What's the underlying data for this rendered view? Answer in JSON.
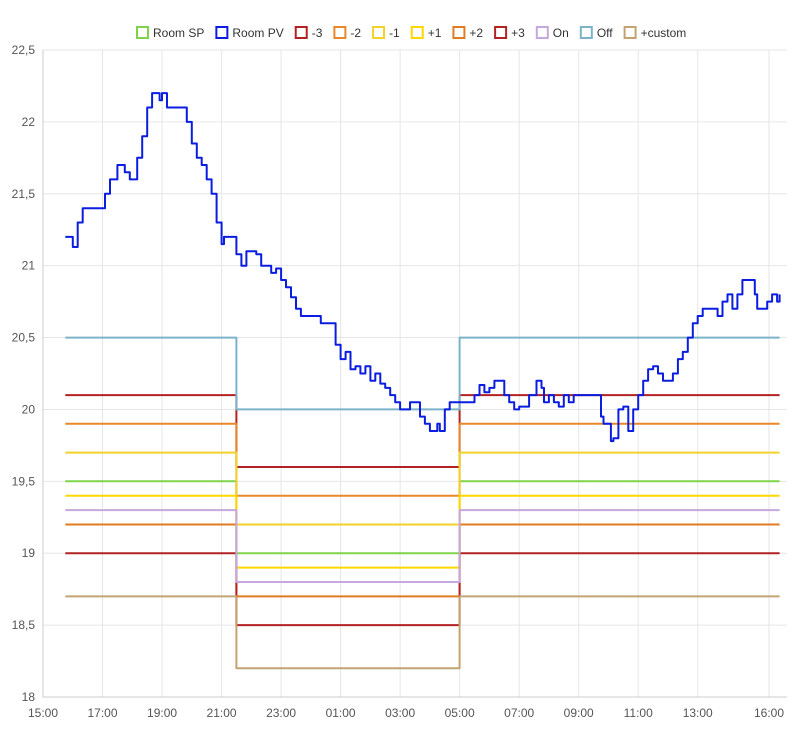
{
  "chart_data": {
    "type": "line",
    "title": "",
    "xlabel": "",
    "ylabel": "",
    "ylim": [
      18,
      22.5
    ],
    "y_ticks": [
      {
        "value": 18,
        "label": "18"
      },
      {
        "value": 18.5,
        "label": "18,5"
      },
      {
        "value": 19,
        "label": "19"
      },
      {
        "value": 19.5,
        "label": "19,5"
      },
      {
        "value": 20,
        "label": "20"
      },
      {
        "value": 20.5,
        "label": "20,5"
      },
      {
        "value": 21,
        "label": "21"
      },
      {
        "value": 21.5,
        "label": "21,5"
      },
      {
        "value": 22,
        "label": "22"
      },
      {
        "value": 22.5,
        "label": "22,5"
      }
    ],
    "xlim": [
      "15:00",
      "16:00 (next day)"
    ],
    "x_ticks": [
      "15:00",
      "17:00",
      "19:00",
      "21:00",
      "23:00",
      "01:00",
      "03:00",
      "05:00",
      "07:00",
      "09:00",
      "11:00",
      "13:00",
      "16:00"
    ],
    "grid": true,
    "legend_position": "top",
    "series": [
      {
        "name": "Room SP",
        "color": "#7ed34a",
        "step": true,
        "points": [
          [
            "15:45",
            19.5
          ],
          [
            "21:30",
            19.5
          ],
          [
            "21:30",
            19.0
          ],
          [
            "05:00",
            19.0
          ],
          [
            "05:00",
            19.5
          ],
          [
            "15:45",
            19.5
          ]
        ]
      },
      {
        "name": "Room PV",
        "color": "#0a1de0",
        "step": false,
        "points": [
          [
            "15:45",
            21.2
          ],
          [
            "15:55",
            21.2
          ],
          [
            "16:00",
            21.13
          ],
          [
            "16:10",
            21.3
          ],
          [
            "16:20",
            21.4
          ],
          [
            "16:50",
            21.4
          ],
          [
            "17:05",
            21.5
          ],
          [
            "17:15",
            21.6
          ],
          [
            "17:30",
            21.7
          ],
          [
            "17:45",
            21.65
          ],
          [
            "17:55",
            21.6
          ],
          [
            "18:10",
            21.75
          ],
          [
            "18:20",
            21.9
          ],
          [
            "18:30",
            22.1
          ],
          [
            "18:40",
            22.2
          ],
          [
            "18:55",
            22.15
          ],
          [
            "19:00",
            22.2
          ],
          [
            "19:10",
            22.1
          ],
          [
            "19:40",
            22.1
          ],
          [
            "19:50",
            22.0
          ],
          [
            "20:00",
            21.85
          ],
          [
            "20:10",
            21.75
          ],
          [
            "20:20",
            21.7
          ],
          [
            "20:30",
            21.6
          ],
          [
            "20:40",
            21.5
          ],
          [
            "20:50",
            21.3
          ],
          [
            "21:00",
            21.15
          ],
          [
            "21:05",
            21.2
          ],
          [
            "21:20",
            21.2
          ],
          [
            "21:30",
            21.08
          ],
          [
            "21:40",
            21.0
          ],
          [
            "21:50",
            21.1
          ],
          [
            "22:10",
            21.08
          ],
          [
            "22:20",
            21.0
          ],
          [
            "22:40",
            20.95
          ],
          [
            "22:50",
            20.98
          ],
          [
            "23:00",
            20.9
          ],
          [
            "23:10",
            20.85
          ],
          [
            "23:20",
            20.78
          ],
          [
            "23:30",
            20.7
          ],
          [
            "23:40",
            20.65
          ],
          [
            "24:00",
            20.65
          ],
          [
            "24:20",
            20.6
          ],
          [
            "24:40",
            20.6
          ],
          [
            "24:50",
            20.45
          ],
          [
            "25:00",
            20.35
          ],
          [
            "25:10",
            20.4
          ],
          [
            "25:20",
            20.28
          ],
          [
            "25:30",
            20.3
          ],
          [
            "25:40",
            20.25
          ],
          [
            "25:50",
            20.3
          ],
          [
            "26:00",
            20.2
          ],
          [
            "26:10",
            20.25
          ],
          [
            "26:20",
            20.18
          ],
          [
            "26:30",
            20.15
          ],
          [
            "26:40",
            20.1
          ],
          [
            "26:50",
            20.05
          ],
          [
            "27:00",
            20.0
          ],
          [
            "27:20",
            20.05
          ],
          [
            "27:40",
            19.95
          ],
          [
            "27:50",
            19.9
          ],
          [
            "28:00",
            19.85
          ],
          [
            "28:15",
            19.9
          ],
          [
            "28:20",
            19.85
          ],
          [
            "28:30",
            20.0
          ],
          [
            "28:40",
            20.05
          ],
          [
            "29:00",
            20.05
          ],
          [
            "29:30",
            20.1
          ],
          [
            "29:40",
            20.17
          ],
          [
            "29:50",
            20.12
          ],
          [
            "30:00",
            20.15
          ],
          [
            "30:10",
            20.2
          ],
          [
            "30:30",
            20.1
          ],
          [
            "30:40",
            20.05
          ],
          [
            "30:50",
            20.0
          ],
          [
            "31:00",
            20.02
          ],
          [
            "31:20",
            20.1
          ],
          [
            "31:35",
            20.2
          ],
          [
            "31:45",
            20.15
          ],
          [
            "31:50",
            20.05
          ],
          [
            "32:00",
            20.1
          ],
          [
            "32:10",
            20.05
          ],
          [
            "32:20",
            20.02
          ],
          [
            "32:30",
            20.1
          ],
          [
            "32:40",
            20.05
          ],
          [
            "32:50",
            20.1
          ],
          [
            "33:40",
            20.1
          ],
          [
            "33:45",
            19.95
          ],
          [
            "33:50",
            19.9
          ],
          [
            "34:00",
            19.9
          ],
          [
            "34:05",
            19.78
          ],
          [
            "34:10",
            19.8
          ],
          [
            "34:20",
            20.0
          ],
          [
            "34:30",
            20.02
          ],
          [
            "34:40",
            19.85
          ],
          [
            "34:50",
            20.0
          ],
          [
            "35:00",
            20.1
          ],
          [
            "35:10",
            20.2
          ],
          [
            "35:20",
            20.28
          ],
          [
            "35:30",
            20.3
          ],
          [
            "35:40",
            20.25
          ],
          [
            "35:50",
            20.2
          ],
          [
            "36:00",
            20.2
          ],
          [
            "36:10",
            20.25
          ],
          [
            "36:20",
            20.35
          ],
          [
            "36:30",
            20.4
          ],
          [
            "36:40",
            20.5
          ],
          [
            "36:50",
            20.6
          ],
          [
            "37:00",
            20.65
          ],
          [
            "37:10",
            20.7
          ],
          [
            "37:30",
            20.7
          ],
          [
            "37:40",
            20.65
          ],
          [
            "37:50",
            20.75
          ],
          [
            "38:00",
            20.8
          ],
          [
            "38:10",
            20.7
          ],
          [
            "38:20",
            20.8
          ],
          [
            "38:30",
            20.9
          ],
          [
            "38:50",
            20.9
          ],
          [
            "38:55",
            20.8
          ],
          [
            "39:00",
            20.7
          ],
          [
            "39:10",
            20.7
          ],
          [
            "39:20",
            20.75
          ],
          [
            "39:30",
            20.8
          ],
          [
            "39:40",
            20.75
          ],
          [
            "39:45",
            20.8
          ]
        ]
      },
      {
        "name": "-3",
        "color": "#b22222",
        "step": true,
        "points": [
          [
            "15:45",
            20.1
          ],
          [
            "21:30",
            20.1
          ],
          [
            "21:30",
            19.6
          ],
          [
            "05:00",
            19.6
          ],
          [
            "05:00",
            20.1
          ],
          [
            "15:45",
            20.1
          ]
        ]
      },
      {
        "name": "-2",
        "color": "#e8882a",
        "step": true,
        "points": [
          [
            "15:45",
            19.9
          ],
          [
            "21:30",
            19.9
          ],
          [
            "21:30",
            19.4
          ],
          [
            "05:00",
            19.4
          ],
          [
            "05:00",
            19.9
          ],
          [
            "15:45",
            19.9
          ]
        ]
      },
      {
        "name": "-1",
        "color": "#f2d12a",
        "step": true,
        "points": [
          [
            "15:45",
            19.7
          ],
          [
            "21:30",
            19.7
          ],
          [
            "21:30",
            19.2
          ],
          [
            "05:00",
            19.2
          ],
          [
            "05:00",
            19.7
          ],
          [
            "15:45",
            19.7
          ]
        ]
      },
      {
        "name": "+1",
        "color": "#ffd700",
        "step": true,
        "points": [
          [
            "15:45",
            19.4
          ],
          [
            "21:30",
            19.4
          ],
          [
            "21:30",
            18.9
          ],
          [
            "05:00",
            18.9
          ],
          [
            "05:00",
            19.4
          ],
          [
            "15:45",
            19.4
          ]
        ]
      },
      {
        "name": "+2",
        "color": "#e07b22",
        "step": true,
        "points": [
          [
            "15:45",
            19.2
          ],
          [
            "21:30",
            19.2
          ],
          [
            "21:30",
            18.7
          ],
          [
            "05:00",
            18.7
          ],
          [
            "05:00",
            19.2
          ],
          [
            "15:45",
            19.2
          ]
        ]
      },
      {
        "name": "+3",
        "color": "#b22222",
        "step": true,
        "points": [
          [
            "15:45",
            19.0
          ],
          [
            "21:30",
            19.0
          ],
          [
            "21:30",
            18.5
          ],
          [
            "05:00",
            18.5
          ],
          [
            "05:00",
            19.0
          ],
          [
            "15:45",
            19.0
          ]
        ]
      },
      {
        "name": "On",
        "color": "#c4a8de",
        "step": true,
        "points": [
          [
            "15:45",
            19.3
          ],
          [
            "21:30",
            19.3
          ],
          [
            "21:30",
            18.8
          ],
          [
            "05:00",
            18.8
          ],
          [
            "05:00",
            19.3
          ],
          [
            "15:45",
            19.3
          ]
        ]
      },
      {
        "name": "Off",
        "color": "#7db3c9",
        "step": true,
        "points": [
          [
            "15:45",
            20.5
          ],
          [
            "21:30",
            20.5
          ],
          [
            "21:30",
            20.0
          ],
          [
            "05:00",
            20.0
          ],
          [
            "05:00",
            20.5
          ],
          [
            "15:45",
            20.5
          ]
        ]
      },
      {
        "name": "+custom",
        "color": "#c4a373",
        "step": true,
        "points": [
          [
            "15:45",
            18.7
          ],
          [
            "21:30",
            18.7
          ],
          [
            "21:30",
            18.2
          ],
          [
            "05:00",
            18.2
          ],
          [
            "05:00",
            18.7
          ],
          [
            "15:45",
            18.7
          ]
        ]
      }
    ]
  },
  "colors": {
    "grid": "#e6e6e6",
    "axis": "#cccccc",
    "text": "#555555"
  }
}
